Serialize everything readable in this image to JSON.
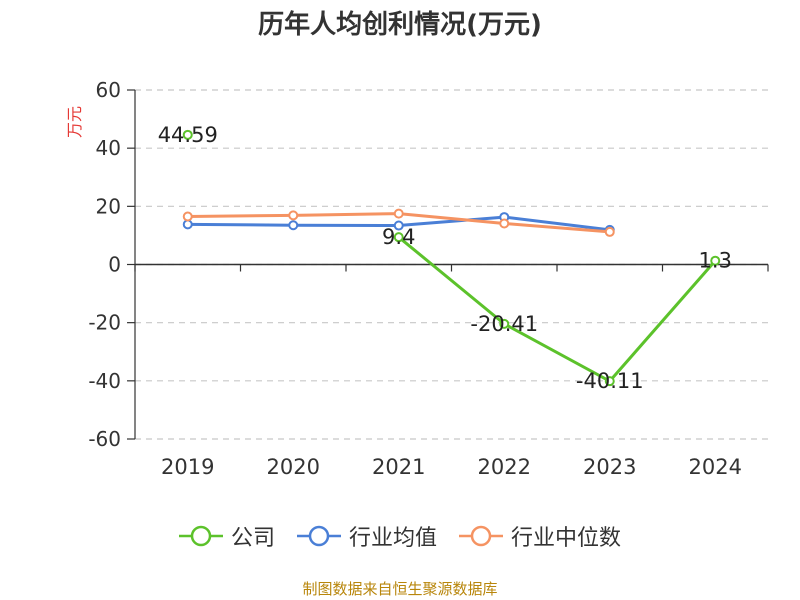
{
  "title": "历年人均创利情况(万元)",
  "source_note": "制图数据来自恒生聚源数据库",
  "colors": {
    "company": "#5cc22b",
    "industry_avg": "#4a7fd6",
    "industry_median": "#f59362",
    "ylabel": "#e53935",
    "axis": "#333333",
    "grid": "#c8c8c8"
  },
  "legend": [
    {
      "label": "公司",
      "color": "#5cc22b"
    },
    {
      "label": "行业均值",
      "color": "#4a7fd6"
    },
    {
      "label": "行业中位数",
      "color": "#f59362"
    }
  ],
  "chart_data": {
    "type": "line",
    "title": "历年人均创利情况(万元)",
    "ylabel": "万元",
    "xlabel": "",
    "categories": [
      "2019",
      "2020",
      "2021",
      "2022",
      "2023",
      "2024"
    ],
    "ylim": [
      -60,
      60
    ],
    "yticks": [
      60,
      40,
      20,
      0,
      -20,
      -40,
      -60
    ],
    "grid": true,
    "legend_position": "bottom",
    "series": [
      {
        "name": "公司",
        "values": [
          44.59,
          null,
          9.4,
          -20.41,
          -40.11,
          1.3
        ],
        "labels": [
          "44.59",
          null,
          "9.4",
          "-20.41",
          "-40.11",
          "1.3"
        ]
      },
      {
        "name": "行业均值",
        "values": [
          13.8,
          13.5,
          13.4,
          16.3,
          11.9,
          null
        ]
      },
      {
        "name": "行业中位数",
        "values": [
          16.5,
          16.9,
          17.5,
          14.1,
          11.2,
          null
        ]
      }
    ]
  }
}
